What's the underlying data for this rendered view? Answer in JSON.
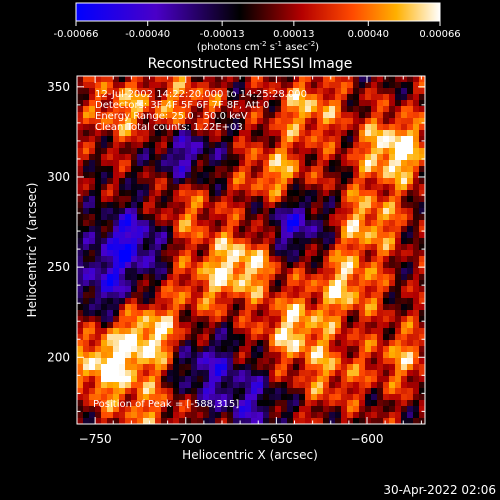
{
  "colorbar": {
    "tick_labels": [
      "-0.00066",
      "-0.00040",
      "-0.00013",
      "0.00013",
      "0.00040",
      "0.00066"
    ],
    "tick_values": [
      -0.00066,
      -0.0004,
      -0.00013,
      0.00013,
      0.0004,
      0.00066
    ],
    "range": [
      -0.00066,
      0.00066
    ],
    "units": {
      "a": "(photons cm",
      "a_sup": "-2",
      "b": " s",
      "b_sup": "-1",
      "c": " asec",
      "c_sup": "-2",
      "d": ")"
    },
    "colors": [
      "#0000ff",
      "#5500cc",
      "#000000",
      "#8b0000",
      "#ff4500",
      "#ffa500",
      "#ffffff"
    ]
  },
  "footer": {
    "timestamp": "30-Apr-2022 02:06"
  },
  "chart_data": {
    "type": "heatmap",
    "title": "Reconstructed RHESSI Image",
    "xlabel": "Heliocentric X (arcsec)",
    "ylabel": "Heliocentric Y (arcsec)",
    "xlim": [
      -760,
      -568
    ],
    "ylim": [
      163,
      356
    ],
    "x_ticks": [
      -750,
      -700,
      -650,
      -600
    ],
    "x_tick_labels": [
      "−750",
      "−700",
      "−650",
      "−600"
    ],
    "y_ticks": [
      200,
      250,
      300,
      350
    ],
    "y_tick_labels": [
      "200",
      "250",
      "300",
      "350"
    ],
    "annotations": [
      "12-Jul-2002 14:22:20.000 to 14:25:28.000",
      "Detectors: 3F 4F 5F 6F 7F 8F, Att 0",
      "Energy Range: 25.0 - 50.0 keV",
      "Clean     Total counts: 1.22E+03"
    ],
    "peak_label": "Position of Peak = [-588,315]",
    "peak": [
      -588,
      315
    ],
    "bright_regions": [
      {
        "x": -585,
        "y": 315,
        "value": 0.00066
      },
      {
        "x": -744,
        "y": 195,
        "value": 0.0006
      },
      {
        "x": -720,
        "y": 212,
        "value": 0.00058
      },
      {
        "x": -668,
        "y": 252,
        "value": 0.00055
      },
      {
        "x": -640,
        "y": 215,
        "value": 0.0005
      },
      {
        "x": -612,
        "y": 240,
        "value": 0.00048
      },
      {
        "x": -600,
        "y": 275,
        "value": 0.00046
      },
      {
        "x": -650,
        "y": 300,
        "value": 0.00045
      },
      {
        "x": -632,
        "y": 338,
        "value": 0.00044
      },
      {
        "x": -700,
        "y": 338,
        "value": 0.0004
      },
      {
        "x": -735,
        "y": 338,
        "value": 0.00038
      },
      {
        "x": -700,
        "y": 280,
        "value": 0.0003
      },
      {
        "x": -690,
        "y": 240,
        "value": 0.00028
      },
      {
        "x": -720,
        "y": 170,
        "value": 0.0003
      },
      {
        "x": -620,
        "y": 190,
        "value": 0.00032
      },
      {
        "x": -580,
        "y": 200,
        "value": 0.00035
      }
    ],
    "dim_regions": [
      {
        "x": -640,
        "y": 275,
        "value": -0.0005
      },
      {
        "x": -730,
        "y": 265,
        "value": -0.00055
      },
      {
        "x": -700,
        "y": 315,
        "value": -0.00045
      },
      {
        "x": -745,
        "y": 240,
        "value": -0.0004
      },
      {
        "x": -690,
        "y": 195,
        "value": -0.0004
      },
      {
        "x": -665,
        "y": 175,
        "value": -0.00035
      }
    ]
  }
}
